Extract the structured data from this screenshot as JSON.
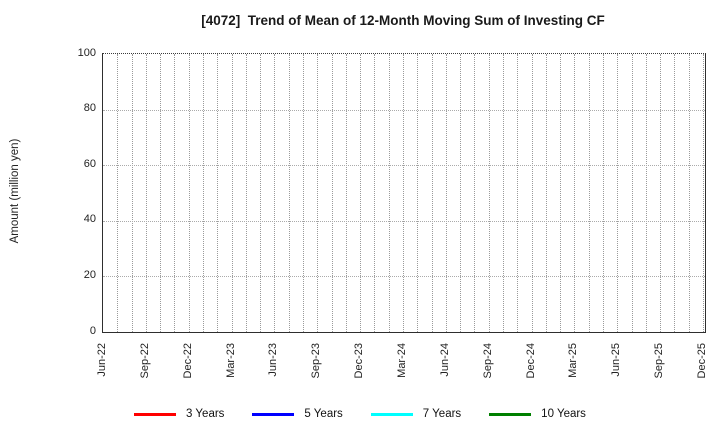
{
  "chart_data": {
    "type": "line",
    "title": "[4072]  Trend of Mean of 12-Month Moving Sum of Investing CF",
    "ylabel": "Amount (million yen)",
    "xlabel": "",
    "ylim": [
      0,
      100
    ],
    "yticks": [
      0,
      20,
      40,
      60,
      80,
      100
    ],
    "x_tick_labels": [
      "Jun-22",
      "Sep-22",
      "Dec-22",
      "Mar-23",
      "Jun-23",
      "Sep-23",
      "Dec-23",
      "Mar-24",
      "Jun-24",
      "Sep-24",
      "Dec-24",
      "Mar-25",
      "Jun-25",
      "Sep-25",
      "Dec-25"
    ],
    "x_label_interval_months": 3,
    "x_minor_interval_months": 1,
    "months_total": 42,
    "grid": true,
    "legend_position": "bottom",
    "series": [
      {
        "name": "3 Years",
        "color": "#ff0000",
        "values": []
      },
      {
        "name": "5 Years",
        "color": "#0000ff",
        "values": []
      },
      {
        "name": "7 Years",
        "color": "#00ffff",
        "values": []
      },
      {
        "name": "10 Years",
        "color": "#008000",
        "values": []
      }
    ]
  }
}
